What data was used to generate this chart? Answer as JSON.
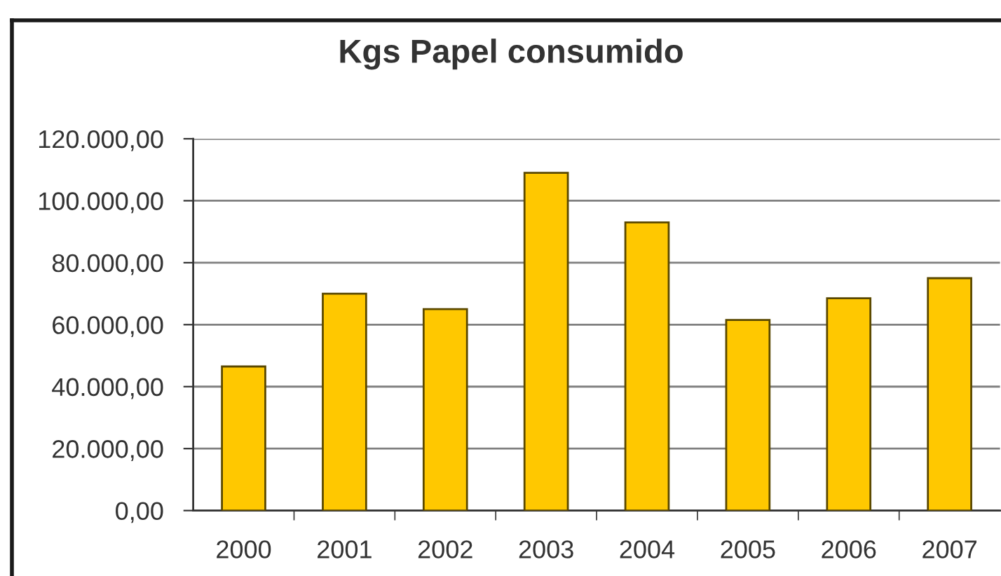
{
  "chart_data": {
    "type": "bar",
    "title": "Kgs Papel consumido",
    "categories": [
      "2000",
      "2001",
      "2002",
      "2003",
      "2004",
      "2005",
      "2006",
      "2007"
    ],
    "values": [
      46500,
      70000,
      65000,
      109000,
      93000,
      61500,
      68500,
      75000
    ],
    "color": "#ffc800",
    "ylim": [
      0,
      120000
    ],
    "yticks": [
      {
        "value": 0,
        "label": "0,00"
      },
      {
        "value": 20000,
        "label": "20.000,00"
      },
      {
        "value": 40000,
        "label": "40.000,00"
      },
      {
        "value": 60000,
        "label": "60.000,00"
      },
      {
        "value": 80000,
        "label": "80.000,00"
      },
      {
        "value": 100000,
        "label": "100.000,00"
      },
      {
        "value": 120000,
        "label": "120.000,00"
      }
    ],
    "grid": "y"
  }
}
